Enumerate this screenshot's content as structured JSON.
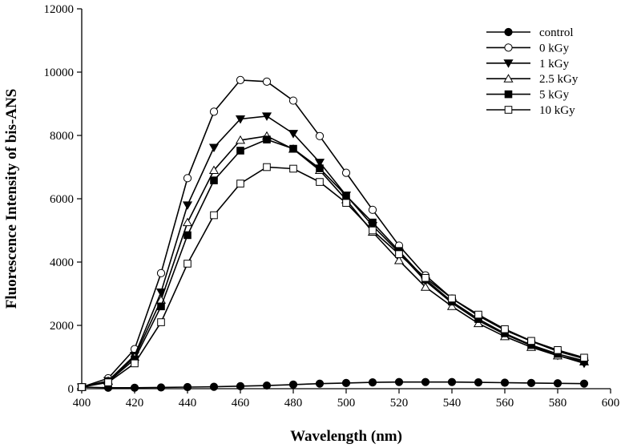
{
  "chart_data": {
    "type": "line",
    "title": "",
    "xlabel": "Wavelength (nm)",
    "ylabel": "Fluorescence Intensity of bis-ANS",
    "xlim": [
      400,
      600
    ],
    "ylim": [
      0,
      12000
    ],
    "xticks": [
      400,
      420,
      440,
      460,
      480,
      500,
      520,
      540,
      560,
      580,
      600
    ],
    "yticks": [
      0,
      2000,
      4000,
      6000,
      8000,
      10000,
      12000
    ],
    "xtick_labels": [
      "400",
      "420",
      "440",
      "460",
      "480",
      "500",
      "520",
      "540",
      "560",
      "580",
      "600"
    ],
    "ytick_labels": [
      "0",
      "2000",
      "4000",
      "6000",
      "8000",
      "10000",
      "12000"
    ],
    "grid": false,
    "legend_position": "top-right",
    "x": [
      400,
      410,
      420,
      430,
      440,
      450,
      460,
      470,
      480,
      490,
      500,
      510,
      520,
      530,
      540,
      550,
      560,
      570,
      580,
      590
    ],
    "series": [
      {
        "name": "control",
        "marker": "circle",
        "fill": "#000000",
        "values": [
          50,
          30,
          30,
          40,
          50,
          60,
          80,
          100,
          130,
          160,
          180,
          200,
          210,
          210,
          210,
          200,
          190,
          180,
          170,
          160
        ]
      },
      {
        "name": "0 kGy",
        "marker": "circle",
        "fill": "#ffffff",
        "values": [
          50,
          330,
          1250,
          3650,
          6650,
          8750,
          9750,
          9700,
          9100,
          7980,
          6820,
          5650,
          4520,
          3580,
          2850,
          2300,
          1850,
          1500,
          1180,
          950
        ]
      },
      {
        "name": "1 kGy",
        "marker": "triangle-down",
        "fill": "#000000",
        "values": [
          50,
          250,
          1050,
          3050,
          5800,
          7620,
          8520,
          8610,
          8060,
          7150,
          6110,
          5150,
          4300,
          3400,
          2710,
          2150,
          1720,
          1360,
          1050,
          800
        ]
      },
      {
        "name": "2.5 kGy",
        "marker": "triangle-up",
        "fill": "#ffffff",
        "values": [
          50,
          240,
          1000,
          2800,
          5250,
          6900,
          7850,
          7980,
          7570,
          6900,
          5970,
          4950,
          4050,
          3210,
          2600,
          2060,
          1650,
          1310,
          1040,
          850
        ]
      },
      {
        "name": "5 kGy",
        "marker": "square",
        "fill": "#000000",
        "values": [
          50,
          220,
          930,
          2600,
          4850,
          6580,
          7520,
          7870,
          7580,
          6960,
          6100,
          5250,
          4350,
          3450,
          2750,
          2200,
          1750,
          1380,
          1100,
          880
        ]
      },
      {
        "name": "10 kGy",
        "marker": "square",
        "fill": "#ffffff",
        "values": [
          50,
          200,
          800,
          2100,
          3950,
          5480,
          6480,
          7000,
          6950,
          6530,
          5870,
          5000,
          4250,
          3500,
          2850,
          2340,
          1880,
          1510,
          1220,
          980
        ]
      }
    ]
  }
}
